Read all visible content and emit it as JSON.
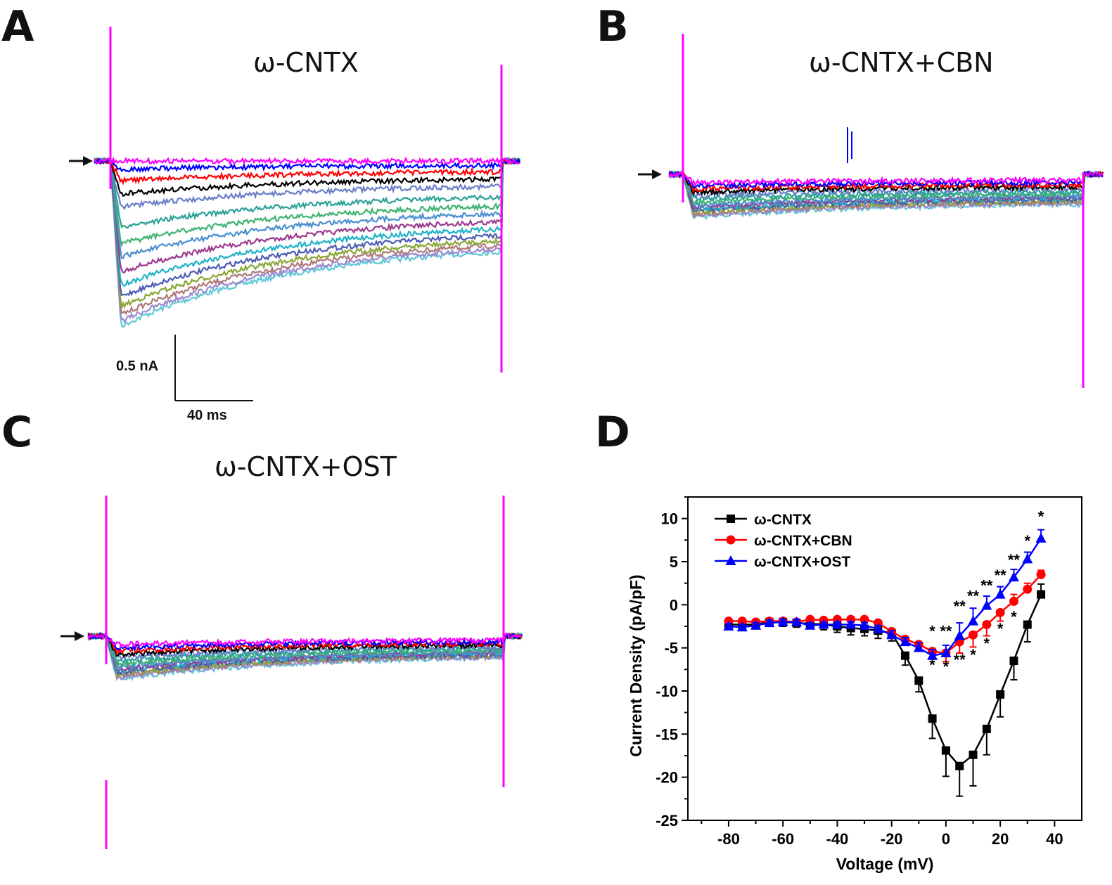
{
  "panels": {
    "a": {
      "letter": "A",
      "title": "ω-CNTX"
    },
    "b": {
      "letter": "B",
      "title": "ω-CNTX+CBN"
    },
    "c": {
      "letter": "C",
      "title": "ω-CNTX+OST"
    },
    "d": {
      "letter": "D"
    }
  },
  "scale_bar": {
    "current": "0.5 nA",
    "time": "40 ms"
  },
  "colors": {
    "trace_palette": [
      "#ff00ff",
      "#0000ff",
      "#ff0000",
      "#000000",
      "#6b7ec9",
      "#2aa198",
      "#3cb371",
      "#4a8fd0",
      "#9b3b8f",
      "#20b2c8",
      "#4b5bb5",
      "#8aa838",
      "#b07a7a",
      "#9a8ad0",
      "#5fc8d8"
    ],
    "pulse": "#ff00ff",
    "cntx": "#000000",
    "cbn": "#ff0000",
    "ost": "#0000ff"
  },
  "chart_data": {
    "type": "line",
    "xlabel": "Voltage (mV)",
    "ylabel": "Current Density (pA/pF)",
    "xlim": [
      -95,
      50
    ],
    "ylim": [
      -25,
      12.5
    ],
    "xticks": [
      -80,
      -60,
      -40,
      -20,
      0,
      20,
      40
    ],
    "yticks": [
      10,
      5,
      0,
      -5,
      -10,
      -15,
      -20,
      -25
    ],
    "x": [
      -80,
      -75,
      -70,
      -65,
      -60,
      -55,
      -50,
      -45,
      -40,
      -35,
      -30,
      -25,
      -20,
      -15,
      -10,
      -5,
      0,
      5,
      10,
      15,
      20,
      25,
      30,
      35
    ],
    "series": [
      {
        "name": "ω-CNTX",
        "marker": "square",
        "color": "#000000",
        "values": [
          -2.3,
          -2.3,
          -2.3,
          -2.0,
          -2.0,
          -2.1,
          -2.2,
          -2.3,
          -2.5,
          -2.7,
          -2.8,
          -3.0,
          -3.3,
          -5.9,
          -8.8,
          -13.2,
          -16.9,
          -18.7,
          -17.4,
          -14.4,
          -10.4,
          -6.5,
          -2.3,
          1.2
        ],
        "errors": [
          0.5,
          0.5,
          0.5,
          0.5,
          0.5,
          0.5,
          0.5,
          0.6,
          0.7,
          0.8,
          0.8,
          0.9,
          0.9,
          1.1,
          1.3,
          2.3,
          3.0,
          3.5,
          3.6,
          3.0,
          2.6,
          2.2,
          2.0,
          1.2
        ]
      },
      {
        "name": "ω-CNTX+CBN",
        "marker": "circle",
        "color": "#ff0000",
        "values": [
          -1.9,
          -1.9,
          -2.0,
          -1.9,
          -1.9,
          -2.0,
          -1.7,
          -1.8,
          -1.7,
          -1.7,
          -1.7,
          -2.1,
          -3.1,
          -4.0,
          -4.6,
          -5.4,
          -5.6,
          -4.3,
          -3.5,
          -2.3,
          -0.9,
          0.4,
          1.8,
          3.5
        ],
        "errors": [
          0.3,
          0.3,
          0.3,
          0.3,
          0.3,
          0.3,
          0.3,
          0.3,
          0.3,
          0.3,
          0.3,
          0.3,
          0.4,
          0.5,
          0.6,
          0.7,
          1.0,
          1.3,
          1.4,
          1.3,
          1.0,
          0.8,
          0.7,
          0.5
        ]
      },
      {
        "name": "ω-CNTX+OST",
        "marker": "triangle",
        "color": "#0000ff",
        "values": [
          -2.5,
          -2.6,
          -2.4,
          -2.1,
          -2.0,
          -2.0,
          -2.4,
          -2.3,
          -2.3,
          -2.3,
          -2.4,
          -2.8,
          -3.5,
          -4.3,
          -5.0,
          -5.9,
          -5.6,
          -3.6,
          -1.9,
          -0.1,
          1.2,
          3.2,
          5.3,
          7.7
        ],
        "errors": [
          0.3,
          0.3,
          0.3,
          0.3,
          0.3,
          0.3,
          0.3,
          0.3,
          0.3,
          0.3,
          0.3,
          0.4,
          0.5,
          0.5,
          0.6,
          0.7,
          0.9,
          1.5,
          1.5,
          1.1,
          0.9,
          0.9,
          0.8,
          1.0
        ]
      }
    ],
    "annotations": [
      {
        "x": -5,
        "y": -3.7,
        "text": "*"
      },
      {
        "x": 0,
        "y": -3.7,
        "text": "**"
      },
      {
        "x": 5,
        "y": -0.8,
        "text": "**"
      },
      {
        "x": 10,
        "y": 0.4,
        "text": "**"
      },
      {
        "x": 15,
        "y": 1.6,
        "text": "**"
      },
      {
        "x": 20,
        "y": 2.8,
        "text": "**"
      },
      {
        "x": 25,
        "y": 4.6,
        "text": "**"
      },
      {
        "x": 30,
        "y": 6.8,
        "text": "*"
      },
      {
        "x": 35,
        "y": 9.6,
        "text": "*"
      },
      {
        "x": -5,
        "y": -7.6,
        "text": "*"
      },
      {
        "x": 0,
        "y": -7.8,
        "text": "*"
      },
      {
        "x": 5,
        "y": -7.0,
        "text": "**"
      },
      {
        "x": 10,
        "y": -6.4,
        "text": "*"
      },
      {
        "x": 15,
        "y": -5.1,
        "text": "*"
      },
      {
        "x": 20,
        "y": -3.4,
        "text": "*"
      },
      {
        "x": 25,
        "y": -2.0,
        "text": "*"
      }
    ],
    "legend": {
      "position": "top-left",
      "entries": [
        "ω-CNTX",
        "ω-CNTX+CBN",
        "ω-CNTX+OST"
      ]
    }
  },
  "trace_panels": [
    {
      "panel": "A",
      "type": "current traces",
      "sweeps": 15,
      "sweep_peaks_nA": [
        0.0,
        -0.05,
        -0.12,
        -0.2,
        -0.28,
        -0.4,
        -0.5,
        -0.58,
        -0.67,
        -0.75,
        -0.82,
        -0.88,
        -0.93,
        -0.97,
        -1.0
      ],
      "inactivation_fraction": 0.45
    },
    {
      "panel": "B",
      "type": "current traces",
      "sweeps": 15,
      "sweep_peaks_nA": [
        -0.05,
        -0.07,
        -0.09,
        -0.11,
        -0.13,
        -0.15,
        -0.17,
        -0.19,
        -0.2,
        -0.21,
        -0.22,
        -0.23,
        -0.24,
        -0.25,
        -0.26
      ],
      "inactivation_fraction": 0.3
    },
    {
      "panel": "C",
      "type": "current traces",
      "sweeps": 15,
      "sweep_peaks_nA": [
        -0.05,
        -0.07,
        -0.09,
        -0.11,
        -0.13,
        -0.15,
        -0.17,
        -0.19,
        -0.2,
        -0.21,
        -0.22,
        -0.23,
        -0.24,
        -0.25,
        -0.26
      ],
      "inactivation_fraction": 0.5
    }
  ]
}
